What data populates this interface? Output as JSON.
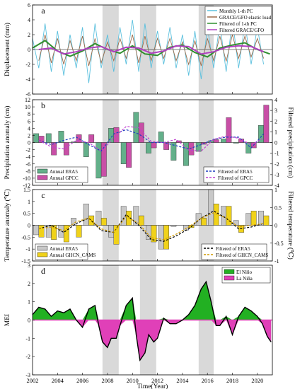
{
  "colors": {
    "shade": "#d9d9d9",
    "monthly_pc": "#5bc0de",
    "grace_elastic": "#9b6b4a",
    "filtered_pc": "#2f8f2f",
    "filtered_grace": "#b040c0",
    "era5_precip": "#63b08a",
    "gpcc": "#c84fa6",
    "filtered_era5_precip": "#1f3fbf",
    "filtered_gpcc": "#c040d0",
    "era5_temp": "#c8c8c8",
    "ghcn_cams": "#f0d21a",
    "filtered_era5_temp": "#000000",
    "filtered_ghcn_cams": "#d19a00",
    "el_nino": "#22b022",
    "la_nina": "#e040b8",
    "mei_line": "#000000"
  },
  "figure": {
    "xlabel": "Time(Year)",
    "x_ticks": [
      "2002",
      "2004",
      "2006",
      "2008",
      "2010",
      "2012",
      "2014",
      "2016",
      "2018",
      "2020"
    ],
    "xlim": [
      2002,
      2021.2
    ],
    "shaded_periods": [
      [
        2007.6,
        2008.9
      ],
      [
        2010.6,
        2011.9
      ],
      [
        2015.3,
        2016.5
      ]
    ]
  },
  "chart_data": [
    {
      "panel": "a",
      "type": "line",
      "ylabel": "Displacement (mm)",
      "ylim": [
        -6,
        6
      ],
      "y_ticks": [
        "-6",
        "-4",
        "-2",
        "0",
        "2",
        "4",
        "6"
      ],
      "legend": [
        "Monthly 1-th PC",
        "GRACE/GFO elastic load",
        "Filtered of 1-th PC",
        "Filtered GRACE/GFO"
      ],
      "series": [
        {
          "name": "Monthly 1-th PC",
          "x": [
            2002.0,
            2002.5,
            2003.0,
            2003.5,
            2004.0,
            2004.5,
            2005.0,
            2005.5,
            2006.0,
            2006.5,
            2007.0,
            2007.5,
            2008.0,
            2008.5,
            2009.0,
            2009.5,
            2010.0,
            2010.5,
            2011.0,
            2011.5,
            2012.0,
            2012.5,
            2013.0,
            2013.5,
            2014.0,
            2014.5,
            2015.0,
            2015.5,
            2016.0,
            2016.5,
            2017.0,
            2017.5,
            2018.0,
            2018.5,
            2019.0,
            2019.5,
            2020.0,
            2020.5
          ],
          "y": [
            1.5,
            -2.5,
            3.5,
            -3.0,
            2.5,
            -3.5,
            2.0,
            -2.5,
            3.0,
            -4.5,
            3.5,
            -2.5,
            2.0,
            -3.0,
            3.0,
            -2.0,
            4.0,
            -3.0,
            3.5,
            -2.5,
            2.5,
            -2.0,
            3.0,
            -2.5,
            2.0,
            -3.5,
            2.5,
            -4.0,
            3.0,
            -2.5,
            3.5,
            -3.0,
            4.0,
            -2.5,
            3.5,
            -2.0,
            3.0,
            -2.0
          ]
        },
        {
          "name": "GRACE/GFO elastic load",
          "x": [
            2002.5,
            2003.0,
            2003.5,
            2004.0,
            2004.5,
            2005.0,
            2005.5,
            2006.0,
            2006.5,
            2007.0,
            2007.5,
            2008.0,
            2008.5,
            2009.0,
            2009.5,
            2010.0,
            2010.5,
            2011.0,
            2011.5,
            2012.0,
            2012.5,
            2013.0,
            2013.5,
            2014.0,
            2014.5,
            2015.0,
            2015.5,
            2016.0,
            2016.5,
            2017.0,
            2017.5,
            2018.0,
            2018.5,
            2019.0,
            2019.5,
            2020.0,
            2020.5
          ],
          "y": [
            -1.5,
            2.0,
            -1.8,
            1.5,
            -2.0,
            1.2,
            -1.5,
            1.8,
            -2.2,
            1.5,
            -1.8,
            1.0,
            -1.5,
            1.5,
            -1.2,
            2.0,
            -1.8,
            1.8,
            -1.5,
            1.5,
            -1.2,
            1.5,
            -1.5,
            1.0,
            -2.0,
            1.2,
            -2.2,
            1.5,
            -1.5,
            1.8,
            -1.6,
            2.0,
            -1.2,
            1.8,
            -1.0,
            1.5,
            -1.2
          ]
        },
        {
          "name": "Filtered of 1-th PC",
          "x": [
            2002.0,
            2003.0,
            2004.0,
            2005.0,
            2006.0,
            2007.0,
            2008.0,
            2009.0,
            2010.0,
            2011.0,
            2012.0,
            2013.0,
            2014.0,
            2015.0,
            2016.0,
            2017.0,
            2018.0,
            2019.0,
            2020.0,
            2021.0
          ],
          "y": [
            0.2,
            1.2,
            -0.2,
            -0.9,
            -0.2,
            0.8,
            0.0,
            -0.5,
            0.5,
            -0.6,
            -0.8,
            0.3,
            0.6,
            -0.4,
            -1.0,
            0.2,
            0.6,
            0.9,
            0.0,
            -0.6
          ]
        },
        {
          "name": "Filtered GRACE/GFO",
          "x": [
            2002.5,
            2003.5,
            2004.5,
            2005.5,
            2006.5,
            2007.5,
            2008.5,
            2009.5,
            2010.5,
            2011.5,
            2012.5,
            2013.5,
            2014.5,
            2015.5,
            2016.5,
            2017.5,
            2018.5,
            2019.5,
            2020.5
          ],
          "y": [
            0.0,
            0.2,
            -0.6,
            -0.3,
            0.2,
            0.4,
            -0.3,
            0.3,
            0.2,
            -0.5,
            -0.2,
            0.5,
            0.4,
            -0.6,
            -0.3,
            0.3,
            0.5,
            0.4,
            -0.3
          ]
        }
      ]
    },
    {
      "panel": "b",
      "type": "bar",
      "ylabel": "Precipitation anomaly (cm)",
      "y2label": "Filtered precipitation (cm)",
      "ylim": [
        -12,
        12
      ],
      "y2lim": [
        -4,
        4
      ],
      "y_ticks": [
        "-12",
        "-10",
        "-8",
        "-6",
        "-4",
        "-2",
        "0",
        "2",
        "4",
        "6",
        "8",
        "10",
        "12"
      ],
      "y2_ticks": [
        "-4",
        "-3",
        "-2",
        "-1",
        "0",
        "1",
        "2",
        "3",
        "4"
      ],
      "legend_left": [
        "Annual ERA5",
        "Annual GPCC"
      ],
      "legend_right": [
        "Filtered of ERA5",
        "Filtered of GPCC"
      ],
      "years": [
        2002,
        2003,
        2004,
        2005,
        2006,
        2007,
        2008,
        2009,
        2010,
        2011,
        2012,
        2013,
        2014,
        2015,
        2016,
        2017,
        2018,
        2019,
        2020
      ],
      "series": [
        {
          "name": "Annual ERA5",
          "values": [
            2.5,
            2.5,
            3.2,
            0.2,
            -4.0,
            -10.0,
            4.0,
            -6.0,
            8.5,
            -3.0,
            3.0,
            -5.0,
            -6.5,
            -2.5,
            0.5,
            1.0,
            -0.2,
            -3.0,
            4.8
          ]
        },
        {
          "name": "Annual GPCC",
          "values": [
            1.8,
            -3.5,
            -3.5,
            2.2,
            2.2,
            -9.5,
            4.2,
            -7.0,
            5.5,
            -1.5,
            -2.0,
            0.5,
            -3.5,
            -0.5,
            0.8,
            7.0,
            1.0,
            -1.5,
            10.5
          ]
        },
        {
          "name": "Filtered of ERA5",
          "axis": "right",
          "values": [
            0.2,
            -0.2,
            0.2,
            0.5,
            -0.2,
            -0.8,
            0.8,
            1.2,
            0.8,
            0.0,
            0.0,
            -0.3,
            -0.6,
            -0.2,
            0.3,
            0.5,
            0.5,
            -0.5,
            0.8
          ]
        },
        {
          "name": "Filtered of GPCC",
          "axis": "right",
          "values": [
            0.2,
            -0.4,
            -0.6,
            0.2,
            0.0,
            -0.8,
            0.4,
            1.5,
            1.4,
            0.1,
            0.0,
            0.3,
            -0.7,
            -0.8,
            0.3,
            0.6,
            0.4,
            -0.2,
            0.4
          ]
        }
      ]
    },
    {
      "panel": "c",
      "type": "bar",
      "ylabel": "Temperature anomaly (℃)",
      "y2label": "Filtered temperature (℃)",
      "ylim": [
        -1.5,
        1.5
      ],
      "y2lim": [
        -1,
        1
      ],
      "y_ticks": [
        "-1.5",
        "-1",
        "-0.5",
        "0",
        "0.5",
        "1",
        "1.5"
      ],
      "y2_ticks": [
        "-1",
        "-0.5",
        "0",
        "0.5",
        "1"
      ],
      "legend_left": [
        "Annual ERA5",
        "Annual GHCN_CAMS"
      ],
      "legend_right": [
        "Filtered of ERA5",
        "Filtered of GHCN_CAMS"
      ],
      "years": [
        2002,
        2003,
        2004,
        2005,
        2006,
        2007,
        2008,
        2009,
        2010,
        2011,
        2012,
        2013,
        2014,
        2015,
        2016,
        2017,
        2018,
        2019,
        2020
      ],
      "series": [
        {
          "name": "Annual ERA5",
          "values": [
            -0.4,
            -0.5,
            -0.5,
            0.3,
            0.9,
            0.6,
            -0.5,
            0.8,
            0.8,
            -0.6,
            -1.0,
            -0.05,
            -0.2,
            0.5,
            1.5,
            0.8,
            0.2,
            0.5,
            0.6
          ]
        },
        {
          "name": "Annual GHCN_CAMS",
          "values": [
            -0.5,
            -0.6,
            -0.7,
            -0.5,
            0.4,
            0.3,
            -0.8,
            0.6,
            0.4,
            -0.7,
            -1.0,
            0.0,
            -0.1,
            0.3,
            0.9,
            0.8,
            -0.3,
            0.6,
            0.4
          ]
        },
        {
          "name": "Filtered of ERA5",
          "axis": "right",
          "values": [
            -0.1,
            0.0,
            -0.2,
            0.05,
            0.2,
            -0.15,
            -0.2,
            0.3,
            0.0,
            -0.4,
            -0.45,
            -0.3,
            -0.1,
            0.2,
            0.4,
            0.2,
            -0.1,
            -0.05,
            0.05
          ]
        },
        {
          "name": "Filtered of GHCN_CAMS",
          "axis": "right",
          "values": [
            -0.1,
            -0.05,
            -0.15,
            0.1,
            0.2,
            -0.1,
            -0.2,
            0.25,
            0.05,
            -0.35,
            -0.4,
            -0.25,
            -0.05,
            0.2,
            0.35,
            0.2,
            -0.05,
            0.0,
            0.05
          ]
        }
      ]
    },
    {
      "panel": "d",
      "type": "area",
      "ylabel": "MEI",
      "ylim": [
        -3,
        3
      ],
      "y_ticks": [
        "-3",
        "-2",
        "-1",
        "0",
        "1",
        "2",
        "3"
      ],
      "legend": [
        "El Niño",
        "La Niña"
      ],
      "series": [
        {
          "name": "MEI",
          "x": [
            2002.0,
            2002.5,
            2003.0,
            2003.5,
            2004.0,
            2004.5,
            2005.0,
            2005.5,
            2006.0,
            2006.5,
            2007.0,
            2007.3,
            2007.6,
            2008.0,
            2008.3,
            2008.7,
            2009.0,
            2009.5,
            2010.0,
            2010.3,
            2010.6,
            2011.0,
            2011.3,
            2011.7,
            2012.0,
            2012.5,
            2013.0,
            2013.5,
            2014.0,
            2014.5,
            2015.0,
            2015.5,
            2015.9,
            2016.3,
            2016.7,
            2017.0,
            2017.5,
            2018.0,
            2018.5,
            2019.0,
            2019.5,
            2020.0,
            2020.4,
            2020.8,
            2021.1
          ],
          "y": [
            0.3,
            0.7,
            0.6,
            0.2,
            0.5,
            0.4,
            0.6,
            0.0,
            -0.4,
            0.6,
            0.8,
            -0.3,
            -1.2,
            -1.5,
            -1.0,
            -1.0,
            -0.3,
            0.8,
            1.2,
            -0.8,
            -2.2,
            -1.8,
            -0.8,
            -1.2,
            -1.0,
            0.1,
            -0.2,
            -0.2,
            0.0,
            0.3,
            0.8,
            1.7,
            2.1,
            1.0,
            -0.3,
            -0.3,
            0.2,
            -0.8,
            0.2,
            0.7,
            0.5,
            0.2,
            -0.2,
            -0.9,
            -1.2
          ]
        }
      ]
    }
  ]
}
